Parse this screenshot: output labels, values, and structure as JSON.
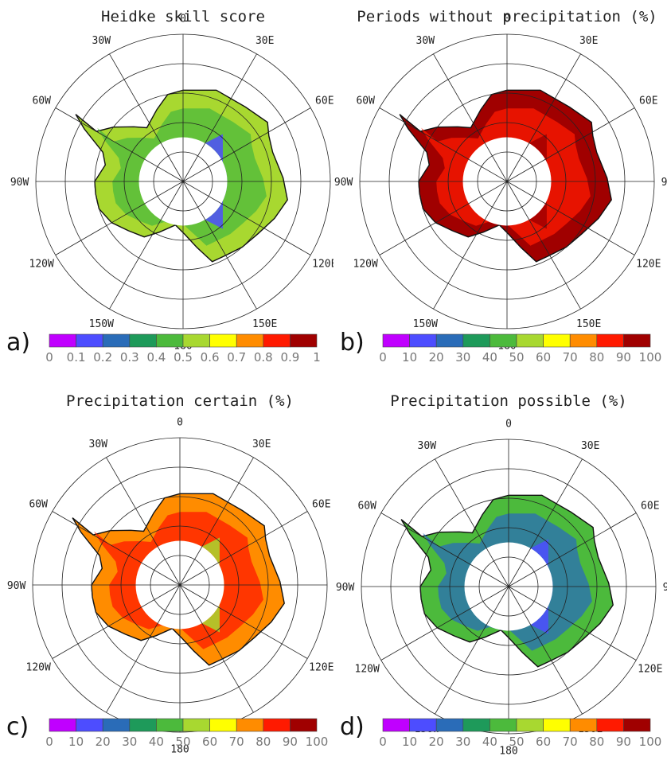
{
  "palette": [
    "#c000ff",
    "#4d4dff",
    "#2a6cb8",
    "#1e9a5a",
    "#4cba3c",
    "#a8d830",
    "#ffff00",
    "#ff8c00",
    "#ff1a00",
    "#a00000"
  ],
  "lon_labels": [
    "0",
    "30E",
    "60E",
    "90E",
    "120E",
    "150E",
    "180",
    "150W",
    "120W",
    "90W",
    "60W",
    "30W"
  ],
  "panels": [
    {
      "id": "a",
      "letter": "a)",
      "title": "Heidke skill score",
      "scale": "hss",
      "dominant": "#a8d830",
      "interior": "#4cba3c",
      "pole": "#4d4dff",
      "ticks": [
        "0",
        "0.1",
        "0.2",
        "0.3",
        "0.4",
        "0.5",
        "0.6",
        "0.7",
        "0.8",
        "0.9",
        "1"
      ]
    },
    {
      "id": "b",
      "letter": "b)",
      "title": "Periods without precipitation (%)",
      "scale": "percent",
      "dominant": "#a00000",
      "interior": "#ff1a00",
      "pole": "#a00000",
      "ticks": [
        "0",
        "10",
        "20",
        "30",
        "40",
        "50",
        "60",
        "70",
        "80",
        "90",
        "100"
      ]
    },
    {
      "id": "c",
      "letter": "c)",
      "title": "Precipitation certain (%)",
      "scale": "percent",
      "dominant": "#ff8c00",
      "interior": "#ff1a00",
      "pole": "#a8d830",
      "ticks": [
        "0",
        "10",
        "20",
        "30",
        "40",
        "50",
        "60",
        "70",
        "80",
        "90",
        "100"
      ]
    },
    {
      "id": "d",
      "letter": "d)",
      "title": "Precipitation possible (%)",
      "scale": "percent",
      "dominant": "#4cba3c",
      "interior": "#2a6cb8",
      "pole": "#4d4dff",
      "ticks": [
        "0",
        "10",
        "20",
        "30",
        "40",
        "50",
        "60",
        "70",
        "80",
        "90",
        "100"
      ]
    }
  ]
}
